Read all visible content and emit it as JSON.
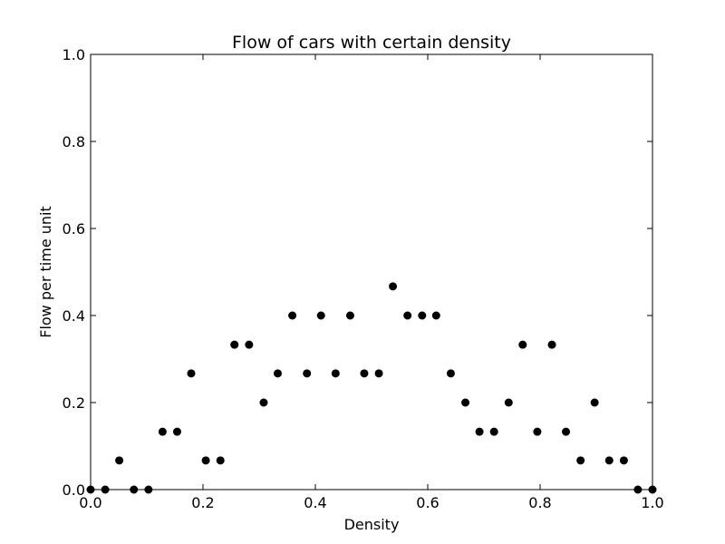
{
  "chart_data": {
    "type": "scatter",
    "title": "Flow of cars with certain density",
    "xlabel": "Density",
    "ylabel": "Flow per time unit",
    "xlim": [
      0.0,
      1.0
    ],
    "ylim": [
      0.0,
      1.0
    ],
    "xticks": [
      "0.0",
      "0.2",
      "0.4",
      "0.6",
      "0.8",
      "1.0"
    ],
    "yticks": [
      "0.0",
      "0.2",
      "0.4",
      "0.6",
      "0.8",
      "1.0"
    ],
    "grid": false,
    "marker_color": "#000000",
    "x": [
      0.0,
      0.026,
      0.051,
      0.077,
      0.103,
      0.128,
      0.154,
      0.179,
      0.205,
      0.231,
      0.256,
      0.282,
      0.308,
      0.333,
      0.359,
      0.385,
      0.41,
      0.436,
      0.462,
      0.487,
      0.513,
      0.538,
      0.564,
      0.59,
      0.615,
      0.641,
      0.667,
      0.692,
      0.718,
      0.744,
      0.769,
      0.795,
      0.821,
      0.846,
      0.872,
      0.897,
      0.923,
      0.949,
      0.974,
      1.0
    ],
    "y": [
      0.0,
      0.0,
      0.067,
      0.0,
      0.0,
      0.133,
      0.133,
      0.267,
      0.067,
      0.067,
      0.333,
      0.333,
      0.2,
      0.267,
      0.4,
      0.267,
      0.4,
      0.267,
      0.4,
      0.267,
      0.267,
      0.467,
      0.4,
      0.4,
      0.4,
      0.267,
      0.2,
      0.133,
      0.133,
      0.2,
      0.333,
      0.133,
      0.333,
      0.133,
      0.067,
      0.2,
      0.067,
      0.067,
      0.0,
      0.0
    ]
  }
}
